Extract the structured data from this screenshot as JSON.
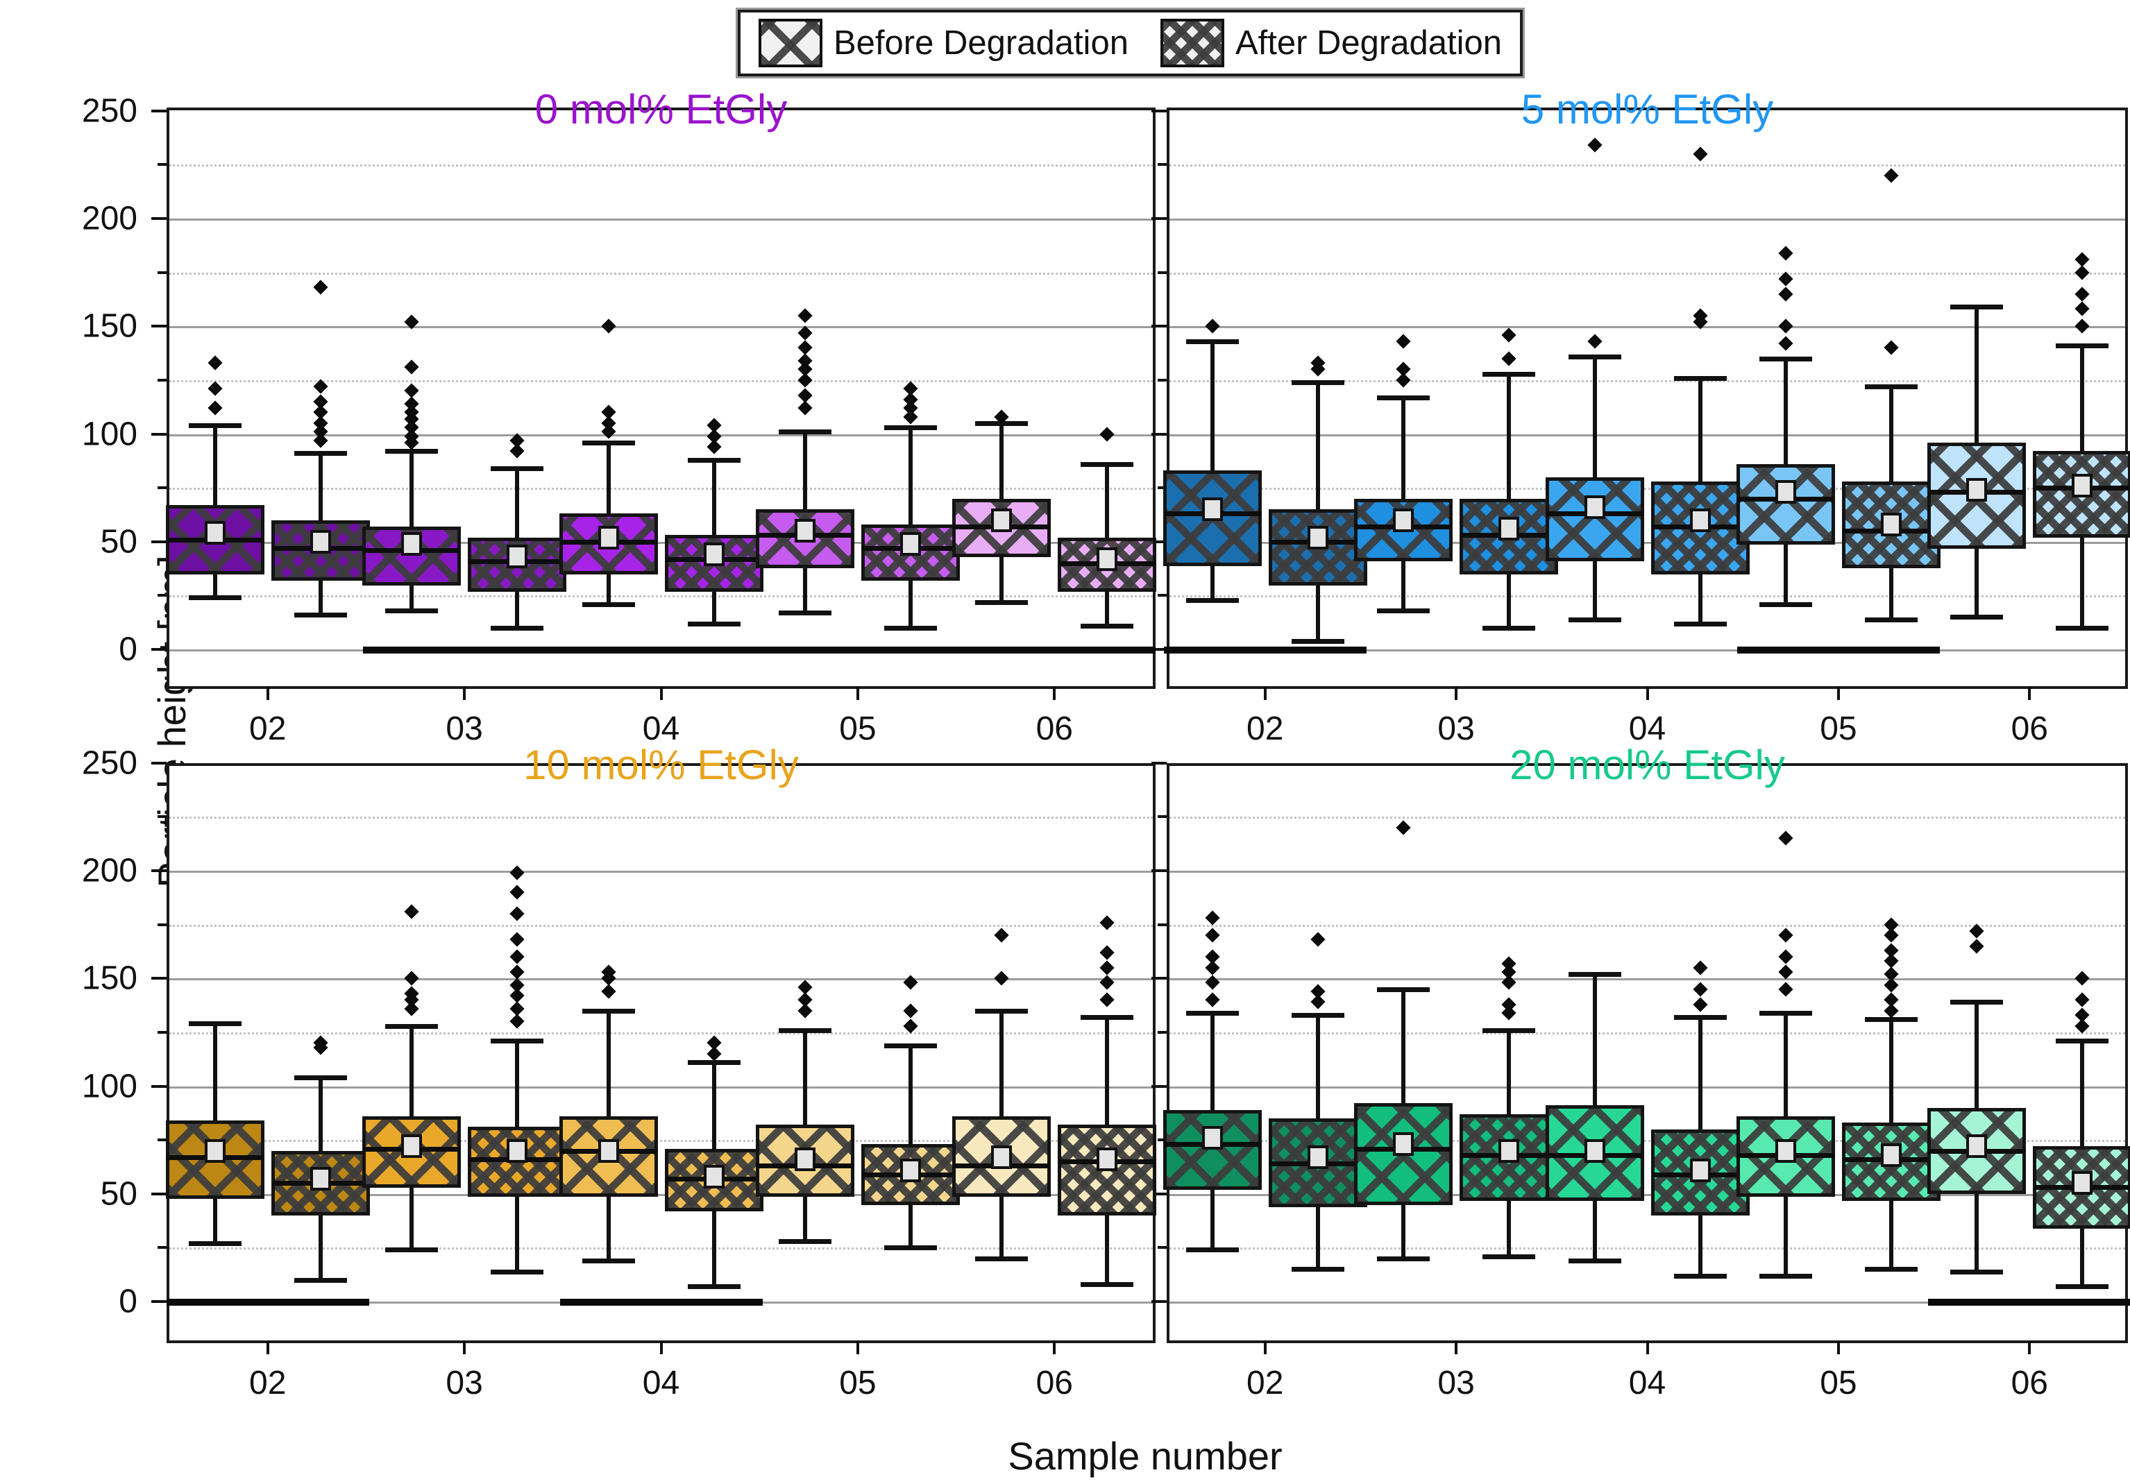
{
  "figure": {
    "kind": "boxplot-grid",
    "background": "#ffffff"
  },
  "legend": {
    "items": [
      {
        "label": "Before Degradation",
        "pattern": "large-crosshatch"
      },
      {
        "label": "After Degradation",
        "pattern": "dense-crosshatch"
      }
    ]
  },
  "axes": {
    "y_label": "Particle height [nm]",
    "x_label": "Sample number",
    "y_ticks": [
      0,
      50,
      100,
      150,
      200,
      250
    ],
    "y_minor_ticks": [
      25,
      75,
      125,
      175,
      225
    ],
    "y_range_shown": [
      -17,
      252
    ],
    "x_categories": [
      "02",
      "03",
      "04",
      "05",
      "06"
    ],
    "grid": "major solid gray, minor dotted"
  },
  "style_colors": {
    "hatch": "#3c3c3c",
    "box_edge": "#141414",
    "gridline_major": "#9c9c9c",
    "gridline_minor": "#c2c2c2",
    "mean_marker_fill": "#e4e4e4"
  },
  "chart_data": [
    {
      "type": "boxplot",
      "title": "0 mol% EtGly",
      "title_color": "#9b12ce",
      "position": "top-left",
      "sample_fill_colors": [
        "#6E0FA3",
        "#8818C6",
        "#A723E8",
        "#C65BEF",
        "#E9ADF6"
      ],
      "zero_bars_under_groups": [
        1,
        2,
        3,
        4
      ],
      "boxes": [
        {
          "sample": "02",
          "phase": "before",
          "low": 24,
          "q1": 38,
          "median": 51,
          "mean": 54,
          "q3": 67,
          "high": 104,
          "outliers": [
            112,
            121,
            133
          ]
        },
        {
          "sample": "02",
          "phase": "after",
          "low": 16,
          "q1": 35,
          "median": 47,
          "mean": 50,
          "q3": 60,
          "high": 91,
          "outliers": [
            97,
            101,
            105,
            110,
            115,
            122,
            168
          ]
        },
        {
          "sample": "03",
          "phase": "before",
          "low": 18,
          "q1": 33,
          "median": 46,
          "mean": 49,
          "q3": 57,
          "high": 92,
          "outliers": [
            96,
            99,
            103,
            107,
            110,
            114,
            120,
            131,
            152
          ]
        },
        {
          "sample": "03",
          "phase": "after",
          "low": 10,
          "q1": 30,
          "median": 41,
          "mean": 43,
          "q3": 52,
          "high": 84,
          "outliers": [
            92,
            97
          ]
        },
        {
          "sample": "04",
          "phase": "before",
          "low": 21,
          "q1": 38,
          "median": 50,
          "mean": 52,
          "q3": 63,
          "high": 96,
          "outliers": [
            101,
            105,
            110,
            150
          ]
        },
        {
          "sample": "04",
          "phase": "after",
          "low": 12,
          "q1": 30,
          "median": 42,
          "mean": 44,
          "q3": 53,
          "high": 88,
          "outliers": [
            94,
            99,
            104
          ]
        },
        {
          "sample": "05",
          "phase": "before",
          "low": 17,
          "q1": 41,
          "median": 53,
          "mean": 55,
          "q3": 65,
          "high": 101,
          "outliers": [
            112,
            118,
            125,
            130,
            134,
            140,
            147,
            155
          ]
        },
        {
          "sample": "05",
          "phase": "after",
          "low": 10,
          "q1": 35,
          "median": 47,
          "mean": 49,
          "q3": 58,
          "high": 103,
          "outliers": [
            108,
            112,
            116,
            121
          ]
        },
        {
          "sample": "06",
          "phase": "before",
          "low": 22,
          "q1": 46,
          "median": 57,
          "mean": 60,
          "q3": 70,
          "high": 105,
          "outliers": [
            108
          ]
        },
        {
          "sample": "06",
          "phase": "after",
          "low": 11,
          "q1": 30,
          "median": 40,
          "mean": 42,
          "q3": 52,
          "high": 86,
          "outliers": [
            100
          ]
        }
      ]
    },
    {
      "type": "boxplot",
      "title": "5 mol% EtGly",
      "title_color": "#2196f3",
      "position": "top-right",
      "sample_fill_colors": [
        "#1C6FAE",
        "#1F8FE0",
        "#3BA6F0",
        "#79C5F6",
        "#BEE3FB"
      ],
      "zero_bars_under_groups": [
        0,
        3
      ],
      "boxes": [
        {
          "sample": "02",
          "phase": "before",
          "low": 23,
          "q1": 42,
          "median": 63,
          "mean": 65,
          "q3": 83,
          "high": 143,
          "outliers": [
            150
          ]
        },
        {
          "sample": "02",
          "phase": "after",
          "low": 4,
          "q1": 33,
          "median": 50,
          "mean": 52,
          "q3": 65,
          "high": 124,
          "outliers": [
            130,
            133
          ]
        },
        {
          "sample": "03",
          "phase": "before",
          "low": 18,
          "q1": 44,
          "median": 57,
          "mean": 60,
          "q3": 70,
          "high": 117,
          "outliers": [
            125,
            130,
            143
          ]
        },
        {
          "sample": "03",
          "phase": "after",
          "low": 10,
          "q1": 38,
          "median": 53,
          "mean": 56,
          "q3": 70,
          "high": 128,
          "outliers": [
            135,
            146
          ]
        },
        {
          "sample": "04",
          "phase": "before",
          "low": 14,
          "q1": 44,
          "median": 63,
          "mean": 66,
          "q3": 80,
          "high": 136,
          "outliers": [
            143,
            234
          ]
        },
        {
          "sample": "04",
          "phase": "after",
          "low": 12,
          "q1": 38,
          "median": 57,
          "mean": 60,
          "q3": 78,
          "high": 126,
          "outliers": [
            152,
            155,
            230
          ]
        },
        {
          "sample": "05",
          "phase": "before",
          "low": 21,
          "q1": 52,
          "median": 70,
          "mean": 73,
          "q3": 86,
          "high": 135,
          "outliers": [
            142,
            150,
            165,
            172,
            184
          ]
        },
        {
          "sample": "05",
          "phase": "after",
          "low": 14,
          "q1": 41,
          "median": 55,
          "mean": 58,
          "q3": 78,
          "high": 122,
          "outliers": [
            140,
            220
          ]
        },
        {
          "sample": "06",
          "phase": "before",
          "low": 15,
          "q1": 50,
          "median": 73,
          "mean": 74,
          "q3": 96,
          "high": 159,
          "outliers": []
        },
        {
          "sample": "06",
          "phase": "after",
          "low": 10,
          "q1": 55,
          "median": 75,
          "mean": 76,
          "q3": 92,
          "high": 141,
          "outliers": [
            150,
            158,
            165,
            175,
            181
          ]
        }
      ]
    },
    {
      "type": "boxplot",
      "title": "10 mol% EtGly",
      "title_color": "#e8a41c",
      "position": "bottom-left",
      "sample_fill_colors": [
        "#BC8714",
        "#E9A82A",
        "#EFBD52",
        "#F3D68C",
        "#F7E8BE"
      ],
      "zero_bars_under_groups": [
        0,
        2
      ],
      "boxes": [
        {
          "sample": "02",
          "phase": "before",
          "low": 27,
          "q1": 51,
          "median": 67,
          "mean": 70,
          "q3": 84,
          "high": 129,
          "outliers": []
        },
        {
          "sample": "02",
          "phase": "after",
          "low": 10,
          "q1": 43,
          "median": 55,
          "mean": 57,
          "q3": 70,
          "high": 104,
          "outliers": [
            118,
            120
          ]
        },
        {
          "sample": "03",
          "phase": "before",
          "low": 24,
          "q1": 56,
          "median": 71,
          "mean": 72,
          "q3": 86,
          "high": 128,
          "outliers": [
            136,
            140,
            143,
            150,
            181
          ]
        },
        {
          "sample": "03",
          "phase": "after",
          "low": 14,
          "q1": 52,
          "median": 66,
          "mean": 70,
          "q3": 81,
          "high": 121,
          "outliers": [
            130,
            136,
            142,
            147,
            153,
            160,
            168,
            180,
            190,
            199
          ]
        },
        {
          "sample": "04",
          "phase": "before",
          "low": 19,
          "q1": 52,
          "median": 70,
          "mean": 70,
          "q3": 86,
          "high": 135,
          "outliers": [
            144,
            150,
            153
          ]
        },
        {
          "sample": "04",
          "phase": "after",
          "low": 7,
          "q1": 45,
          "median": 57,
          "mean": 58,
          "q3": 71,
          "high": 111,
          "outliers": [
            115,
            120
          ]
        },
        {
          "sample": "05",
          "phase": "before",
          "low": 28,
          "q1": 52,
          "median": 63,
          "mean": 66,
          "q3": 82,
          "high": 126,
          "outliers": [
            135,
            140,
            146
          ]
        },
        {
          "sample": "05",
          "phase": "after",
          "low": 25,
          "q1": 48,
          "median": 59,
          "mean": 61,
          "q3": 73,
          "high": 119,
          "outliers": [
            128,
            135,
            148
          ]
        },
        {
          "sample": "06",
          "phase": "before",
          "low": 20,
          "q1": 52,
          "median": 63,
          "mean": 67,
          "q3": 86,
          "high": 135,
          "outliers": [
            150,
            170
          ]
        },
        {
          "sample": "06",
          "phase": "after",
          "low": 8,
          "q1": 43,
          "median": 65,
          "mean": 66,
          "q3": 82,
          "high": 132,
          "outliers": [
            140,
            148,
            155,
            162,
            176
          ]
        }
      ]
    },
    {
      "type": "boxplot",
      "title": "20 mol% EtGly",
      "title_color": "#19c98a",
      "position": "bottom-right",
      "sample_fill_colors": [
        "#0F8F60",
        "#12BD7E",
        "#27D795",
        "#58E9B0",
        "#A5F4D6"
      ],
      "zero_bars_under_groups": [
        4
      ],
      "boxes": [
        {
          "sample": "02",
          "phase": "before",
          "low": 24,
          "q1": 55,
          "median": 73,
          "mean": 76,
          "q3": 89,
          "high": 134,
          "outliers": [
            140,
            148,
            155,
            160,
            170,
            178
          ]
        },
        {
          "sample": "02",
          "phase": "after",
          "low": 15,
          "q1": 47,
          "median": 64,
          "mean": 67,
          "q3": 85,
          "high": 133,
          "outliers": [
            139,
            144,
            168
          ]
        },
        {
          "sample": "03",
          "phase": "before",
          "low": 20,
          "q1": 48,
          "median": 71,
          "mean": 73,
          "q3": 92,
          "high": 145,
          "outliers": [
            220
          ]
        },
        {
          "sample": "03",
          "phase": "after",
          "low": 21,
          "q1": 50,
          "median": 68,
          "mean": 70,
          "q3": 87,
          "high": 126,
          "outliers": [
            134,
            138,
            148,
            153,
            157
          ]
        },
        {
          "sample": "04",
          "phase": "before",
          "low": 19,
          "q1": 50,
          "median": 68,
          "mean": 70,
          "q3": 91,
          "high": 152,
          "outliers": []
        },
        {
          "sample": "04",
          "phase": "after",
          "low": 12,
          "q1": 43,
          "median": 59,
          "mean": 61,
          "q3": 80,
          "high": 132,
          "outliers": [
            138,
            145,
            155
          ]
        },
        {
          "sample": "05",
          "phase": "before",
          "low": 12,
          "q1": 52,
          "median": 68,
          "mean": 70,
          "q3": 86,
          "high": 134,
          "outliers": [
            145,
            153,
            160,
            170,
            215
          ]
        },
        {
          "sample": "05",
          "phase": "after",
          "low": 15,
          "q1": 50,
          "median": 66,
          "mean": 68,
          "q3": 83,
          "high": 131,
          "outliers": [
            135,
            140,
            147,
            152,
            158,
            163,
            170,
            175
          ]
        },
        {
          "sample": "06",
          "phase": "before",
          "low": 14,
          "q1": 53,
          "median": 70,
          "mean": 72,
          "q3": 90,
          "high": 139,
          "outliers": [
            165,
            172
          ]
        },
        {
          "sample": "06",
          "phase": "after",
          "low": 7,
          "q1": 37,
          "median": 53,
          "mean": 55,
          "q3": 72,
          "high": 121,
          "outliers": [
            128,
            133,
            140,
            150
          ]
        }
      ]
    }
  ]
}
